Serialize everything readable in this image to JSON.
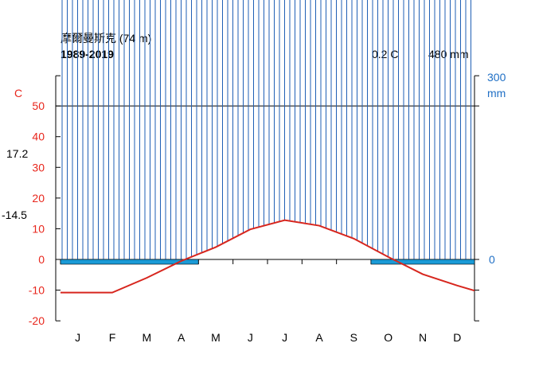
{
  "chart_data": {
    "type": "line",
    "title": "摩爾曼斯克 (74 m)",
    "subtitle": "1989-2019",
    "annual_temp": "0.2 C",
    "annual_precip": "480 mm",
    "temp_unit": "C",
    "precip_unit": "mm",
    "temp_axis": {
      "range": [
        -20,
        50
      ],
      "ticks": [
        "50",
        "40",
        "30",
        "20",
        "10",
        "0",
        "-10",
        "-20"
      ]
    },
    "precip_axis": {
      "range": [
        0,
        100
      ],
      "top_label": "300",
      "ticks": [
        "100",
        "80",
        "60",
        "40",
        "20",
        "0"
      ]
    },
    "categories": [
      "J",
      "F",
      "M",
      "A",
      "M",
      "J",
      "J",
      "A",
      "S",
      "O",
      "N",
      "D"
    ],
    "side_labels": {
      "max_temp": "17.2",
      "min_temp": "-14.5"
    },
    "series": [
      {
        "name": "",
        "unit": "C",
        "color": "#d7261e",
        "values": [
          -10.8,
          -10.8,
          -6.0,
          -0.5,
          4.0,
          9.8,
          12.8,
          11.0,
          6.8,
          0.8,
          -4.8,
          -8.5
        ]
      },
      {
        "name": "",
        "unit": "mm",
        "color": "#1f5fb5",
        "values": [
          32.5,
          21.5,
          19.5,
          20.5,
          29.5,
          53.5,
          60.5,
          66.0,
          51.5,
          43.5,
          41.5,
          35.5
        ]
      }
    ],
    "frost_months": {
      "start_fraction": 0.0,
      "end_fraction": 0.333,
      "restart_fraction": 0.75,
      "color": "#1a9ad6"
    }
  }
}
